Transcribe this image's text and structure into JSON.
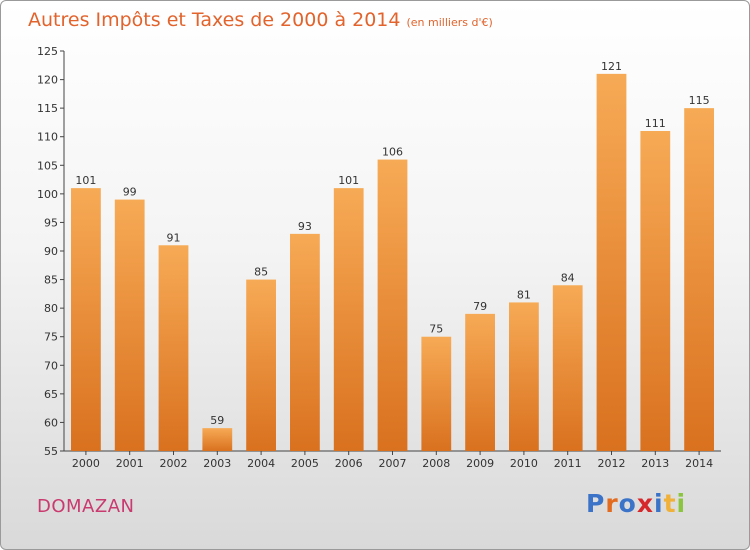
{
  "title": "Autres Impôts et Taxes de 2000 à 2014",
  "unit": "(en milliers d'€)",
  "city": "DOMAZAN",
  "logo": {
    "letters": [
      "P",
      "r",
      "o",
      "x",
      "i",
      "t",
      "i"
    ],
    "colors": [
      "#3a73c8",
      "#e36b1f",
      "#3a73c8",
      "#d6272a",
      "#3a73c8",
      "#f0b13a",
      "#8bc53f"
    ]
  },
  "colors": {
    "bar_light": "#f7aa55",
    "bar_dark": "#d9711f",
    "title": "#e2632c",
    "city": "#c93a6e"
  },
  "chart_data": {
    "type": "bar",
    "title": "Autres Impôts et Taxes de 2000 à 2014",
    "subtitle": "(en milliers d'€)",
    "categories": [
      "2000",
      "2001",
      "2002",
      "2003",
      "2004",
      "2005",
      "2006",
      "2007",
      "2008",
      "2009",
      "2010",
      "2011",
      "2012",
      "2013",
      "2014"
    ],
    "values": [
      101,
      99,
      91,
      59,
      85,
      93,
      101,
      106,
      75,
      79,
      81,
      84,
      121,
      111,
      115
    ],
    "ylim": [
      55,
      125
    ],
    "yticks": [
      55,
      60,
      65,
      70,
      75,
      80,
      85,
      90,
      95,
      100,
      105,
      110,
      115,
      120,
      125
    ],
    "xlabel": "",
    "ylabel": "",
    "grid": false,
    "data_labels": true
  }
}
